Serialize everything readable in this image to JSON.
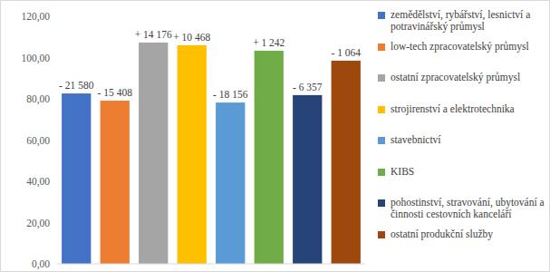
{
  "chart_data": {
    "type": "bar",
    "categories": [
      "zemědělství, rybářství, lesnictví a potravinářský průmysl",
      "low-tech zpracovatelský průmysl",
      "ostatní zpracovatelský průmysl",
      "strojirenství a elektrotechnika",
      "stavebnictví",
      "KIBS",
      "pohostinství, stravování, ubytování a činnosti cestovních kanceláří",
      "ostatní produkční služby"
    ],
    "values": [
      82.6,
      79.1,
      107.3,
      106.0,
      78.2,
      103.3,
      81.8,
      98.5
    ],
    "colors": [
      "#4472c4",
      "#ed7d31",
      "#a5a5a5",
      "#ffc000",
      "#5b9bd5",
      "#70ad47",
      "#264478",
      "#9e480e"
    ],
    "annotations": [
      "- 21 580",
      "- 15 408",
      "+ 14 176",
      "+ 10 468",
      "- 18 156",
      "+ 1 242",
      "- 6 357",
      "- 1 064"
    ],
    "ylim": [
      0,
      120
    ],
    "yticks": [
      {
        "value": 0,
        "label": "0,00"
      },
      {
        "value": 20,
        "label": "20,00"
      },
      {
        "value": 40,
        "label": "40,00"
      },
      {
        "value": 60,
        "label": "60,00"
      },
      {
        "value": 80,
        "label": "80,00"
      },
      {
        "value": 100,
        "label": "100,00"
      },
      {
        "value": 120,
        "label": "120,00"
      }
    ],
    "grid": false,
    "legend": "right",
    "tick_labels": "y"
  }
}
